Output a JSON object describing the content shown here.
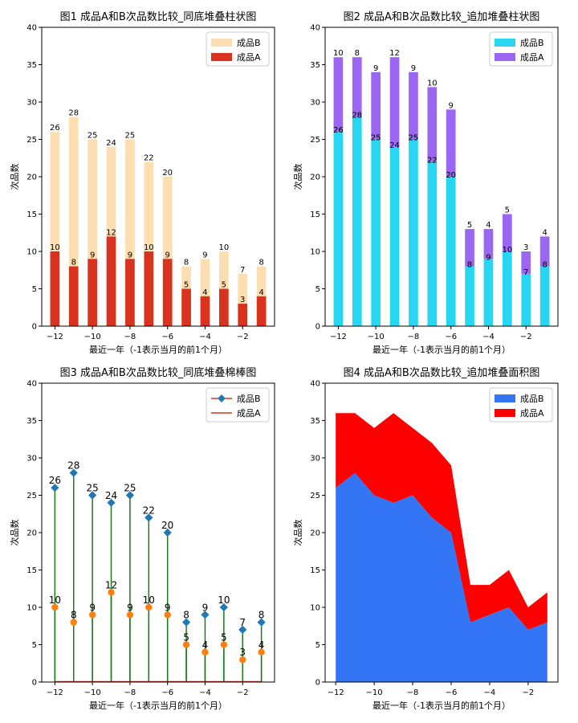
{
  "chart_data": [
    {
      "type": "bar",
      "variant": "overlap",
      "title": "图1 成品A和B次品数比较_同底堆叠柱状图",
      "xlabel": "最近一年（-1表示当月的前1个月）",
      "ylabel": "次品数",
      "x": [
        -12,
        -11,
        -10,
        -9,
        -8,
        -7,
        -6,
        -5,
        -4,
        -3,
        -2,
        -1
      ],
      "xlim": [
        -12.7,
        -0.3
      ],
      "ylim": [
        0,
        40
      ],
      "xticks": [
        -12,
        -10,
        -8,
        -6,
        -4,
        -2
      ],
      "xtick_labels": [
        "−12",
        "−10",
        "−8",
        "−6",
        "−4",
        "−2"
      ],
      "yticks": [
        0,
        5,
        10,
        15,
        20,
        25,
        30,
        35,
        40
      ],
      "ytick_labels": [
        "0",
        "5",
        "10",
        "15",
        "20",
        "25",
        "30",
        "35",
        "40"
      ],
      "series": [
        {
          "name": "成品B",
          "color": "#FDDEB0",
          "values": [
            26,
            28,
            25,
            24,
            25,
            22,
            20,
            8,
            9,
            10,
            7,
            8
          ]
        },
        {
          "name": "成品A",
          "color": "#D9321F",
          "values": [
            10,
            8,
            9,
            12,
            9,
            10,
            9,
            5,
            4,
            5,
            3,
            4
          ]
        }
      ],
      "legend": "top-right"
    },
    {
      "type": "bar",
      "variant": "stacked",
      "title": "图2 成品A和B次品数比较_追加堆叠柱状图",
      "xlabel": "最近一年（-1表示当月的前1个月）",
      "ylabel": "次品数",
      "x": [
        -12,
        -11,
        -10,
        -9,
        -8,
        -7,
        -6,
        -5,
        -4,
        -3,
        -2,
        -1
      ],
      "xlim": [
        -12.7,
        -0.3
      ],
      "ylim": [
        0,
        40
      ],
      "xticks": [
        -12,
        -10,
        -8,
        -6,
        -4,
        -2
      ],
      "xtick_labels": [
        "−12",
        "−10",
        "−8",
        "−6",
        "−4",
        "−2"
      ],
      "yticks": [
        0,
        5,
        10,
        15,
        20,
        25,
        30,
        35,
        40
      ],
      "ytick_labels": [
        "0",
        "5",
        "10",
        "15",
        "20",
        "25",
        "30",
        "35",
        "40"
      ],
      "series": [
        {
          "name": "成品B",
          "color": "#27D7F2",
          "values": [
            26,
            28,
            25,
            24,
            25,
            22,
            20,
            8,
            9,
            10,
            7,
            8
          ]
        },
        {
          "name": "成品A",
          "color": "#9B66F2",
          "values": [
            10,
            8,
            9,
            12,
            9,
            10,
            9,
            5,
            4,
            5,
            3,
            4
          ]
        }
      ],
      "legend": "top-right"
    },
    {
      "type": "stem",
      "title": "图3 成品A和B次品数比较_同底堆叠棉棒图",
      "xlabel": "最近一年（-1表示当月的前1个月）",
      "ylabel": "次品数",
      "x": [
        -12,
        -11,
        -10,
        -9,
        -8,
        -7,
        -6,
        -5,
        -4,
        -3,
        -2,
        -1
      ],
      "xlim": [
        -12.7,
        -0.3
      ],
      "ylim": [
        0,
        40
      ],
      "xticks": [
        -12,
        -10,
        -8,
        -6,
        -4,
        -2
      ],
      "xtick_labels": [
        "−12",
        "−10",
        "−8",
        "−6",
        "−4",
        "−2"
      ],
      "yticks": [
        0,
        5,
        10,
        15,
        20,
        25,
        30,
        35,
        40
      ],
      "ytick_labels": [
        "0",
        "5",
        "10",
        "15",
        "20",
        "25",
        "30",
        "35",
        "40"
      ],
      "stem_color": "#1C7A1C",
      "baseline_color": "#D9321F",
      "series": [
        {
          "name": "成品B",
          "color": "#1F77B4",
          "marker": "diamond",
          "values": [
            26,
            28,
            25,
            24,
            25,
            22,
            20,
            8,
            9,
            10,
            7,
            8
          ]
        },
        {
          "name": "成品A",
          "color": "#FF7F0E",
          "marker": "circle",
          "values": [
            10,
            8,
            9,
            12,
            9,
            10,
            9,
            5,
            4,
            5,
            3,
            4
          ]
        }
      ],
      "legend": "top-right"
    },
    {
      "type": "area",
      "variant": "stacked",
      "title": "图4 成品A和B次品数比较_追加堆叠面积图",
      "xlabel": "最近一年（-1表示当月的前1个月）",
      "ylabel": "次品数",
      "x": [
        -12,
        -11,
        -10,
        -9,
        -8,
        -7,
        -6,
        -5,
        -4,
        -3,
        -2,
        -1
      ],
      "xlim": [
        -12.55,
        -0.45
      ],
      "ylim": [
        0,
        40
      ],
      "xticks": [
        -12,
        -10,
        -8,
        -6,
        -4,
        -2
      ],
      "xtick_labels": [
        "−12",
        "−10",
        "−8",
        "−6",
        "−4",
        "−2"
      ],
      "yticks": [
        0,
        5,
        10,
        15,
        20,
        25,
        30,
        35,
        40
      ],
      "ytick_labels": [
        "0",
        "5",
        "10",
        "15",
        "20",
        "25",
        "30",
        "35",
        "40"
      ],
      "series": [
        {
          "name": "成品B",
          "color": "#3375F5",
          "values": [
            26,
            28,
            25,
            24,
            25,
            22,
            20,
            8,
            9,
            10,
            7,
            8
          ]
        },
        {
          "name": "成品A",
          "color": "#FF0000",
          "values": [
            10,
            8,
            9,
            12,
            9,
            10,
            9,
            5,
            4,
            5,
            3,
            4
          ]
        }
      ],
      "legend": "top-right"
    }
  ]
}
